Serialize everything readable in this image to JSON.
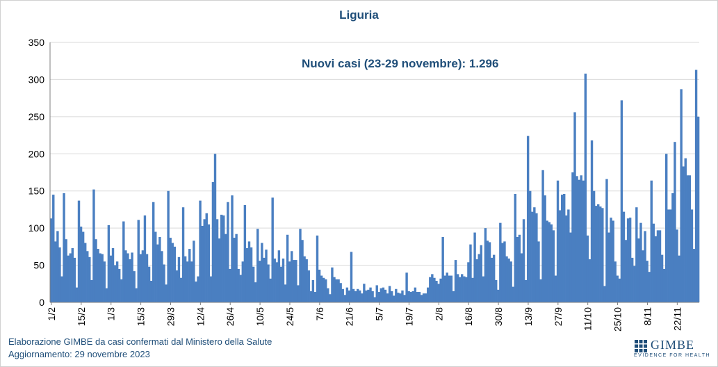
{
  "header": {
    "title": "Liguria"
  },
  "annotation": {
    "text": "Nuovi casi (23-29 novembre): 1.296"
  },
  "footer": {
    "line1": "Elaborazione GIMBE da casi confermati dal Ministero della Salute",
    "line2": "Aggiornamento: 29 novembre 2023"
  },
  "logo": {
    "word": "GIMBE",
    "tagline": "EVIDENCE FOR HEALTH"
  },
  "colors": {
    "bar": "#4a7fc1",
    "text": "#1f4e79",
    "grid": "#d9d9d9",
    "axis": "#7f7f7f"
  },
  "chart_data": {
    "type": "bar",
    "title": "Liguria",
    "xlabel": "",
    "ylabel": "",
    "ylim": [
      0,
      350
    ],
    "yticks": [
      0,
      50,
      100,
      150,
      200,
      250,
      300,
      350
    ],
    "grid": true,
    "legend": "none",
    "x_tick_labels": [
      "1/2",
      "15/2",
      "1/3",
      "15/3",
      "29/3",
      "12/4",
      "26/4",
      "10/5",
      "24/5",
      "7/6",
      "21/6",
      "5/7",
      "19/7",
      "2/8",
      "16/8",
      "30/8",
      "13/9",
      "27/9",
      "11/10",
      "25/10",
      "8/11",
      "22/11"
    ],
    "start_date": "2023-02-01",
    "end_date": "2023-11-29",
    "values": [
      113,
      145,
      82,
      96,
      74,
      35,
      147,
      85,
      63,
      66,
      73,
      60,
      20,
      137,
      102,
      95,
      80,
      69,
      61,
      30,
      152,
      85,
      72,
      66,
      65,
      55,
      19,
      104,
      63,
      73,
      50,
      55,
      45,
      31,
      109,
      70,
      66,
      58,
      67,
      42,
      19,
      111,
      65,
      70,
      117,
      65,
      48,
      29,
      135,
      95,
      78,
      88,
      69,
      51,
      24,
      150,
      87,
      80,
      75,
      43,
      61,
      33,
      128,
      62,
      55,
      72,
      55,
      83,
      28,
      35,
      137,
      103,
      112,
      120,
      105,
      35,
      162,
      200,
      112,
      86,
      118,
      117,
      92,
      135,
      45,
      144,
      87,
      92,
      45,
      37,
      55,
      131,
      73,
      82,
      74,
      48,
      27,
      99,
      56,
      80,
      60,
      71,
      51,
      32,
      141,
      59,
      54,
      70,
      48,
      59,
      24,
      91,
      55,
      69,
      57,
      57,
      23,
      99,
      84,
      62,
      58,
      43,
      15,
      30,
      14,
      90,
      44,
      36,
      33,
      31,
      19,
      11,
      47,
      34,
      31,
      31,
      26,
      18,
      10,
      20,
      16,
      68,
      18,
      15,
      18,
      16,
      12,
      25,
      16,
      17,
      20,
      15,
      7,
      23,
      14,
      19,
      20,
      17,
      12,
      22,
      15,
      9,
      18,
      13,
      12,
      16,
      10,
      40,
      15,
      14,
      15,
      20,
      14,
      14,
      10,
      12,
      12,
      20,
      34,
      38,
      33,
      29,
      25,
      32,
      88,
      36,
      40,
      36,
      36,
      15,
      57,
      38,
      34,
      38,
      35,
      34,
      54,
      78,
      33,
      94,
      58,
      65,
      77,
      35,
      100,
      83,
      81,
      60,
      64,
      30,
      17,
      107,
      80,
      82,
      62,
      59,
      55,
      21,
      146,
      88,
      91,
      66,
      112,
      30,
      224,
      150,
      122,
      128,
      120,
      82,
      31,
      178,
      144,
      110,
      108,
      105,
      97,
      36,
      164,
      124,
      145,
      146,
      117,
      125,
      94,
      175,
      256,
      170,
      165,
      171,
      164,
      308,
      90,
      58,
      218,
      150,
      130,
      132,
      129,
      127,
      22,
      166,
      94,
      114,
      110,
      55,
      36,
      32,
      272,
      122,
      84,
      113,
      114,
      60,
      49,
      128,
      86,
      107,
      70,
      96,
      56,
      41,
      164,
      106,
      89,
      97,
      97,
      64,
      45,
      200,
      125,
      125,
      147,
      216,
      98,
      63,
      287,
      183,
      194,
      171,
      171,
      125,
      72,
      313,
      250
    ]
  }
}
